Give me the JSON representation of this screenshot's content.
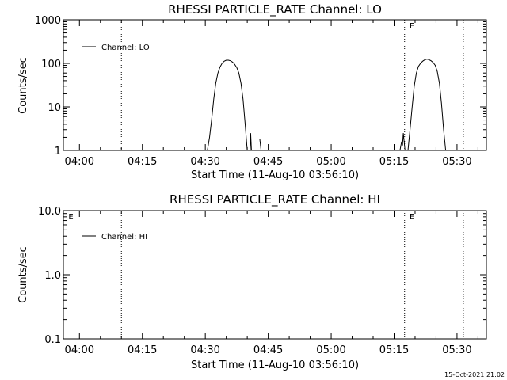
{
  "footer": {
    "timestamp": "15-Oct-2021 21:02"
  },
  "chart_data": [
    {
      "type": "line",
      "title": "RHESSI PARTICLE_RATE Channel: LO",
      "xlabel": "Start Time (11-Aug-10 03:56:10)",
      "ylabel": "Counts/sec",
      "yscale": "log",
      "ylim": [
        1,
        1000
      ],
      "yticks": [
        1,
        10,
        100,
        1000
      ],
      "ytick_labels": [
        "1",
        "10",
        "100",
        "1000"
      ],
      "xlim_minutes": [
        236.17,
        337.0
      ],
      "xticks_minutes": [
        240,
        255,
        270,
        285,
        300,
        315,
        330
      ],
      "xtick_labels": [
        "04:00",
        "04:15",
        "04:30",
        "04:45",
        "05:00",
        "05:15",
        "05:30"
      ],
      "vlines_minutes": [
        250.0,
        317.5,
        331.5
      ],
      "annotations": [
        {
          "text": "E",
          "x_minutes": 318.3
        }
      ],
      "legend": {
        "position": "top-left",
        "entries": [
          "Channel: LO"
        ]
      },
      "series": [
        {
          "name": "Channel: LO",
          "segments": [
            [
              [
                270.5,
                1
              ],
              [
                271.0,
                2
              ],
              [
                271.5,
                5
              ],
              [
                272.0,
                15
              ],
              [
                272.5,
                35
              ],
              [
                273.0,
                60
              ],
              [
                273.5,
                82
              ],
              [
                274.0,
                100
              ],
              [
                274.5,
                112
              ],
              [
                275.0,
                118
              ],
              [
                275.5,
                118
              ],
              [
                276.0,
                115
              ],
              [
                276.5,
                107
              ],
              [
                277.0,
                95
              ],
              [
                277.5,
                80
              ],
              [
                278.0,
                60
              ],
              [
                278.5,
                35
              ],
              [
                279.0,
                15
              ],
              [
                279.5,
                4
              ],
              [
                280.0,
                1
              ]
            ],
            [
              [
                280.7,
                1
              ],
              [
                280.8,
                2.5
              ],
              [
                281.0,
                1
              ]
            ],
            [
              [
                283.0,
                1.8
              ],
              [
                283.3,
                1
              ]
            ],
            [
              [
                316.4,
                1
              ],
              [
                316.8,
                1.6
              ],
              [
                317.0,
                1.3
              ],
              [
                317.2,
                2.5
              ],
              [
                317.6,
                1
              ]
            ],
            [
              [
                318.3,
                1
              ],
              [
                318.8,
                3
              ],
              [
                319.3,
                10
              ],
              [
                319.8,
                30
              ],
              [
                320.3,
                60
              ],
              [
                320.8,
                85
              ],
              [
                321.3,
                100
              ],
              [
                321.8,
                112
              ],
              [
                322.3,
                120
              ],
              [
                322.8,
                125
              ],
              [
                323.3,
                122
              ],
              [
                323.8,
                115
              ],
              [
                324.3,
                105
              ],
              [
                324.8,
                90
              ],
              [
                325.3,
                65
              ],
              [
                325.8,
                35
              ],
              [
                326.3,
                12
              ],
              [
                326.8,
                3
              ],
              [
                327.3,
                1
              ]
            ]
          ]
        }
      ]
    },
    {
      "type": "line",
      "title": "RHESSI PARTICLE_RATE Channel: HI",
      "xlabel": "Start Time (11-Aug-10 03:56:10)",
      "ylabel": "Counts/sec",
      "yscale": "log",
      "ylim": [
        0.1,
        10
      ],
      "yticks": [
        0.1,
        1,
        10
      ],
      "ytick_labels": [
        "0.1",
        "1.0",
        "10.0"
      ],
      "xlim_minutes": [
        236.17,
        337.0
      ],
      "xticks_minutes": [
        240,
        255,
        270,
        285,
        300,
        315,
        330
      ],
      "xtick_labels": [
        "04:00",
        "04:15",
        "04:30",
        "04:45",
        "05:00",
        "05:15",
        "05:30"
      ],
      "vlines_minutes": [
        250.0,
        317.5,
        331.5
      ],
      "annotations": [
        {
          "text": "E",
          "x_minutes": 237.0
        },
        {
          "text": "E",
          "x_minutes": 318.3
        }
      ],
      "legend": {
        "position": "top-left",
        "entries": [
          "Channel: HI"
        ]
      },
      "series": [
        {
          "name": "Channel: HI",
          "segments": []
        }
      ]
    }
  ]
}
